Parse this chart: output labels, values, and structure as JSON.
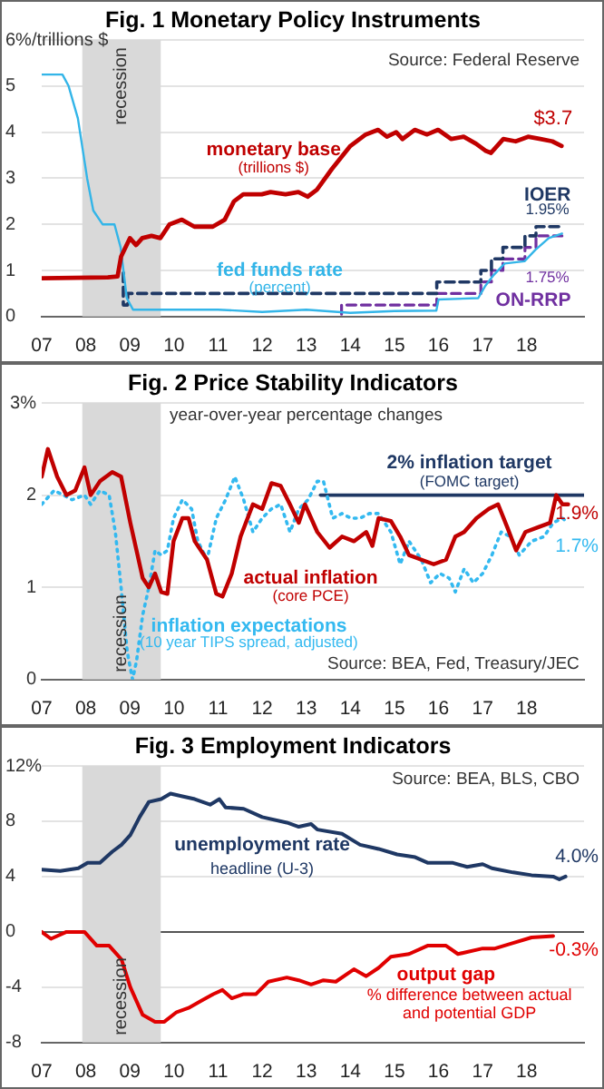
{
  "chart_data": [
    {
      "type": "line",
      "title": "Fig. 1 Monetary Policy Instruments",
      "annotations": [
        "Source: Federal Reserve",
        "(trillions $)",
        "(percent)",
        {
          "text": "$3.7",
          "x": 2018.79,
          "y": 3.7
        },
        {
          "text": "1.95%",
          "x": 2018.8,
          "y": 1.95
        },
        {
          "text": "1.75%",
          "x": 2018.8,
          "y": 1.75
        }
      ],
      "xlim": [
        2007,
        2019.3
      ],
      "xticks": [
        {
          "value": 2007,
          "label": "07"
        },
        {
          "value": 2008,
          "label": "08"
        },
        {
          "value": 2009,
          "label": "09"
        },
        {
          "value": 2010,
          "label": "10"
        },
        {
          "value": 2011,
          "label": "11"
        },
        {
          "value": 2012,
          "label": "12"
        },
        {
          "value": 2013,
          "label": "13"
        },
        {
          "value": 2014,
          "label": "14"
        },
        {
          "value": 2015,
          "label": "15"
        },
        {
          "value": 2016,
          "label": "16"
        },
        {
          "value": 2017,
          "label": "17"
        },
        {
          "value": 2018,
          "label": "18"
        }
      ],
      "ylim": [
        0,
        6
      ],
      "yticks": [
        0,
        1,
        2,
        3,
        4,
        5,
        {
          "value": 6,
          "label": "6%/trillions $"
        }
      ],
      "grid": "y",
      "bands": [
        {
          "axis": "x",
          "from": 2007.92,
          "to": 2009.7,
          "label": "recession",
          "color": "#d9d9d9"
        }
      ],
      "series": [
        {
          "name": "monetary base",
          "color": "#c00000",
          "x": [
            2007.0,
            2008.5,
            2008.72,
            2008.8,
            2009.0,
            2009.14,
            2009.28,
            2009.49,
            2009.69,
            2009.9,
            2010.18,
            2010.46,
            2010.88,
            2011.15,
            2011.36,
            2011.57,
            2011.99,
            2012.19,
            2012.53,
            2012.82,
            2013.03,
            2013.24,
            2013.58,
            2014.0,
            2014.35,
            2014.63,
            2014.83,
            2015.04,
            2015.18,
            2015.46,
            2015.74,
            2015.99,
            2016.29,
            2016.57,
            2016.85,
            2017.06,
            2017.19,
            2017.47,
            2017.75,
            2018.03,
            2018.31,
            2018.58,
            2018.79
          ],
          "values": [
            0.83,
            0.85,
            0.87,
            1.3,
            1.7,
            1.55,
            1.7,
            1.75,
            1.7,
            2.0,
            2.1,
            1.95,
            1.95,
            2.1,
            2.5,
            2.65,
            2.65,
            2.7,
            2.65,
            2.7,
            2.6,
            2.75,
            3.2,
            3.7,
            3.95,
            4.05,
            3.9,
            4.0,
            3.85,
            4.05,
            3.95,
            4.05,
            3.85,
            3.9,
            3.75,
            3.6,
            3.55,
            3.85,
            3.8,
            3.9,
            3.85,
            3.8,
            3.7
          ]
        },
        {
          "name": "fed funds rate",
          "color": "#33b5e8",
          "x": [
            2007.0,
            2007.47,
            2007.61,
            2007.82,
            2008.03,
            2008.17,
            2008.38,
            2008.65,
            2008.79,
            2008.93,
            2009.07,
            2010,
            2011,
            2012,
            2013,
            2014,
            2015,
            2015.95,
            2016.0,
            2016.9,
            2017.05,
            2017.25,
            2017.5,
            2017.95,
            2018.2,
            2018.5,
            2018.8
          ],
          "values": [
            5.25,
            5.25,
            5.0,
            4.3,
            3.0,
            2.3,
            2.0,
            2.0,
            1.5,
            0.4,
            0.15,
            0.15,
            0.15,
            0.1,
            0.15,
            0.08,
            0.12,
            0.13,
            0.37,
            0.4,
            0.65,
            0.9,
            1.15,
            1.2,
            1.45,
            1.7,
            1.8
          ]
        },
        {
          "name": "IOER",
          "type": "step",
          "line_style": "dashed",
          "color": "#1f3864",
          "x": [
            2008.85,
            2008.95,
            2015.96,
            2016.96,
            2017.2,
            2017.46,
            2017.96,
            2018.21,
            2018.46,
            2018.8
          ],
          "values": [
            0.95,
            0.25,
            0.5,
            0.75,
            1.0,
            1.25,
            1.5,
            1.75,
            1.95,
            1.95
          ]
        },
        {
          "name": "ON-RRP",
          "type": "step",
          "line_style": "dashed",
          "color": "#7030a0",
          "x": [
            2013.8,
            2015.96,
            2016.96,
            2017.2,
            2017.46,
            2017.96,
            2018.21,
            2018.46,
            2018.8
          ],
          "values": [
            0.05,
            0.25,
            0.5,
            0.75,
            1.0,
            1.25,
            1.5,
            1.75,
            1.75
          ]
        }
      ]
    },
    {
      "type": "line",
      "title": "Fig. 2 Price Stability Indicators",
      "subtitle": "year-over-year percentage changes",
      "annotations": [
        "(FOMC target)",
        "(core PCE)",
        "(10 year TIPS spread, adjusted)",
        "Source: BEA, Fed, Treasury/JEC",
        {
          "text": "1.9%",
          "x": 2018.94,
          "y": 1.9
        },
        {
          "text": "1.7%",
          "x": 2018.94,
          "y": 1.7
        }
      ],
      "xlim": [
        2007,
        2019.3
      ],
      "xticks": [
        {
          "value": 2007,
          "label": "07"
        },
        {
          "value": 2008,
          "label": "08"
        },
        {
          "value": 2009,
          "label": "09"
        },
        {
          "value": 2010,
          "label": "10"
        },
        {
          "value": 2011,
          "label": "11"
        },
        {
          "value": 2012,
          "label": "12"
        },
        {
          "value": 2013,
          "label": "13"
        },
        {
          "value": 2014,
          "label": "14"
        },
        {
          "value": 2015,
          "label": "15"
        },
        {
          "value": 2016,
          "label": "16"
        },
        {
          "value": 2017,
          "label": "17"
        },
        {
          "value": 2018,
          "label": "18"
        }
      ],
      "ylim": [
        0,
        3
      ],
      "yticks": [
        0,
        1,
        2,
        {
          "value": 3,
          "label": "3%"
        }
      ],
      "grid": "y",
      "bands": [
        {
          "axis": "x",
          "from": 2007.92,
          "to": 2009.7,
          "label": "recession",
          "color": "#d9d9d9"
        }
      ],
      "series": [
        {
          "name": "actual inflation",
          "color": "#c00000",
          "x": [
            2007.0,
            2007.14,
            2007.35,
            2007.56,
            2007.76,
            2007.97,
            2008.11,
            2008.32,
            2008.6,
            2008.8,
            2009.01,
            2009.15,
            2009.29,
            2009.43,
            2009.57,
            2009.71,
            2009.85,
            2009.99,
            2010.19,
            2010.33,
            2010.47,
            2010.75,
            2010.96,
            2011.1,
            2011.31,
            2011.51,
            2011.79,
            2012.0,
            2012.21,
            2012.42,
            2012.63,
            2012.83,
            2012.97,
            2013.25,
            2013.53,
            2013.81,
            2014.08,
            2014.36,
            2014.5,
            2014.64,
            2014.92,
            2015.13,
            2015.33,
            2015.61,
            2015.89,
            2016.17,
            2016.38,
            2016.58,
            2016.86,
            2017.14,
            2017.35,
            2017.56,
            2017.76,
            2017.97,
            2018.25,
            2018.53,
            2018.67,
            2018.81,
            2018.94
          ],
          "values": [
            2.2,
            2.5,
            2.2,
            2.0,
            2.05,
            2.3,
            2.0,
            2.15,
            2.25,
            2.2,
            1.7,
            1.4,
            1.1,
            1.0,
            1.15,
            0.95,
            0.93,
            1.5,
            1.75,
            1.75,
            1.5,
            1.3,
            0.93,
            0.9,
            1.15,
            1.55,
            1.9,
            1.85,
            2.13,
            2.1,
            1.9,
            1.7,
            1.9,
            1.6,
            1.43,
            1.55,
            1.5,
            1.6,
            1.45,
            1.75,
            1.72,
            1.55,
            1.35,
            1.3,
            1.25,
            1.3,
            1.55,
            1.6,
            1.75,
            1.85,
            1.9,
            1.65,
            1.4,
            1.6,
            1.65,
            1.7,
            2.0,
            1.9,
            1.9
          ]
        },
        {
          "name": "inflation expectations",
          "line_style": "dotted",
          "color": "#33b9f0",
          "x": [
            2007.0,
            2007.28,
            2007.49,
            2007.69,
            2007.97,
            2008.11,
            2008.32,
            2008.53,
            2008.67,
            2008.8,
            2008.94,
            2009.06,
            2009.15,
            2009.29,
            2009.43,
            2009.57,
            2009.71,
            2009.85,
            2009.99,
            2010.19,
            2010.4,
            2010.54,
            2010.75,
            2010.96,
            2011.17,
            2011.38,
            2011.58,
            2011.79,
            2012.0,
            2012.21,
            2012.42,
            2012.63,
            2012.83,
            2013.04,
            2013.25,
            2013.39,
            2013.6,
            2013.81,
            2014.01,
            2014.22,
            2014.43,
            2014.64,
            2014.92,
            2015.13,
            2015.33,
            2015.61,
            2015.82,
            2016.03,
            2016.24,
            2016.38,
            2016.58,
            2016.79,
            2017.0,
            2017.21,
            2017.42,
            2017.63,
            2017.83,
            2018.11,
            2018.39,
            2018.6,
            2018.81,
            2018.94
          ],
          "values": [
            1.9,
            2.05,
            2.0,
            1.95,
            2.0,
            1.9,
            2.05,
            2.0,
            1.6,
            1.0,
            0.3,
            0.0,
            0.2,
            0.7,
            1.0,
            1.4,
            1.35,
            1.4,
            1.75,
            1.95,
            1.85,
            1.5,
            1.3,
            1.75,
            1.95,
            2.2,
            1.95,
            1.6,
            1.75,
            1.85,
            1.9,
            1.6,
            1.85,
            1.95,
            2.15,
            2.15,
            1.75,
            1.8,
            1.75,
            1.75,
            1.8,
            1.8,
            1.6,
            1.25,
            1.5,
            1.3,
            1.05,
            1.15,
            1.1,
            0.95,
            1.2,
            1.05,
            1.15,
            1.35,
            1.6,
            1.55,
            1.35,
            1.5,
            1.55,
            1.7,
            1.75,
            1.7
          ]
        },
        {
          "name": "2% inflation target",
          "color": "#1f3864",
          "x": [
            2013.32,
            2019.3
          ],
          "values": [
            2,
            2
          ]
        }
      ]
    },
    {
      "type": "line",
      "title": "Fig. 3 Employment Indicators",
      "annotations": [
        "Source: BEA, BLS, CBO",
        "headline (U-3)",
        "% difference between actual and potential GDP",
        {
          "text": "4.0%",
          "x": 2018.88,
          "y": 4.0
        },
        {
          "text": "-0.3%",
          "x": 2018.6,
          "y": -0.3
        }
      ],
      "xlim": [
        2007,
        2019.3
      ],
      "xticks": [
        {
          "value": 2007,
          "label": "07"
        },
        {
          "value": 2008,
          "label": "08"
        },
        {
          "value": 2009,
          "label": "09"
        },
        {
          "value": 2010,
          "label": "10"
        },
        {
          "value": 2011,
          "label": "11"
        },
        {
          "value": 2012,
          "label": "12"
        },
        {
          "value": 2013,
          "label": "13"
        },
        {
          "value": 2014,
          "label": "14"
        },
        {
          "value": 2015,
          "label": "15"
        },
        {
          "value": 2016,
          "label": "16"
        },
        {
          "value": 2017,
          "label": "17"
        },
        {
          "value": 2018,
          "label": "18"
        }
      ],
      "ylim": [
        -8,
        12
      ],
      "yticks": [
        -8,
        -4,
        0,
        4,
        8,
        {
          "value": 12,
          "label": "12%"
        }
      ],
      "grid": "y",
      "bands": [
        {
          "axis": "x",
          "from": 2007.92,
          "to": 2009.7,
          "label": "recession",
          "color": "#d9d9d9"
        }
      ],
      "series": [
        {
          "name": "unemployment rate",
          "color": "#1f3864",
          "x": [
            2007.0,
            2007.42,
            2007.83,
            2008.04,
            2008.32,
            2008.6,
            2008.81,
            2009.01,
            2009.22,
            2009.43,
            2009.71,
            2009.92,
            2010.19,
            2010.47,
            2010.82,
            2011.03,
            2011.17,
            2011.58,
            2012.0,
            2012.56,
            2012.83,
            2013.11,
            2013.25,
            2013.81,
            2014.22,
            2014.64,
            2015.06,
            2015.47,
            2015.75,
            2016.31,
            2016.65,
            2017.0,
            2017.21,
            2017.69,
            2018.11,
            2018.6,
            2018.74,
            2018.88
          ],
          "values": [
            4.5,
            4.4,
            4.6,
            5.0,
            5.0,
            5.8,
            6.3,
            7.0,
            8.3,
            9.4,
            9.6,
            10.0,
            9.8,
            9.6,
            9.2,
            9.6,
            9.0,
            8.9,
            8.3,
            7.9,
            7.6,
            7.8,
            7.4,
            7.1,
            6.3,
            6.0,
            5.6,
            5.4,
            5.0,
            5.0,
            4.7,
            4.9,
            4.6,
            4.3,
            4.1,
            4.0,
            3.8,
            4.0
          ]
        },
        {
          "name": "output gap",
          "color": "#e00000",
          "x": [
            2007.0,
            2007.21,
            2007.56,
            2007.97,
            2008.25,
            2008.53,
            2008.81,
            2009.01,
            2009.29,
            2009.57,
            2009.78,
            2010.06,
            2010.33,
            2010.61,
            2010.89,
            2011.1,
            2011.31,
            2011.58,
            2011.86,
            2012.14,
            2012.56,
            2012.83,
            2013.11,
            2013.39,
            2013.67,
            2014.08,
            2014.36,
            2014.64,
            2014.92,
            2015.33,
            2015.75,
            2016.17,
            2016.44,
            2017.0,
            2017.28,
            2017.69,
            2018.11,
            2018.6
          ],
          "values": [
            0.0,
            -0.5,
            0.0,
            0.0,
            -1.0,
            -1.0,
            -2.0,
            -4.0,
            -6.0,
            -6.5,
            -6.5,
            -5.8,
            -5.5,
            -5.0,
            -4.5,
            -4.2,
            -4.8,
            -4.5,
            -4.5,
            -3.6,
            -3.3,
            -3.5,
            -3.8,
            -3.5,
            -3.6,
            -2.7,
            -3.2,
            -2.6,
            -1.8,
            -1.6,
            -1.0,
            -1.0,
            -1.6,
            -1.2,
            -1.2,
            -0.8,
            -0.4,
            -0.3
          ]
        }
      ]
    }
  ]
}
